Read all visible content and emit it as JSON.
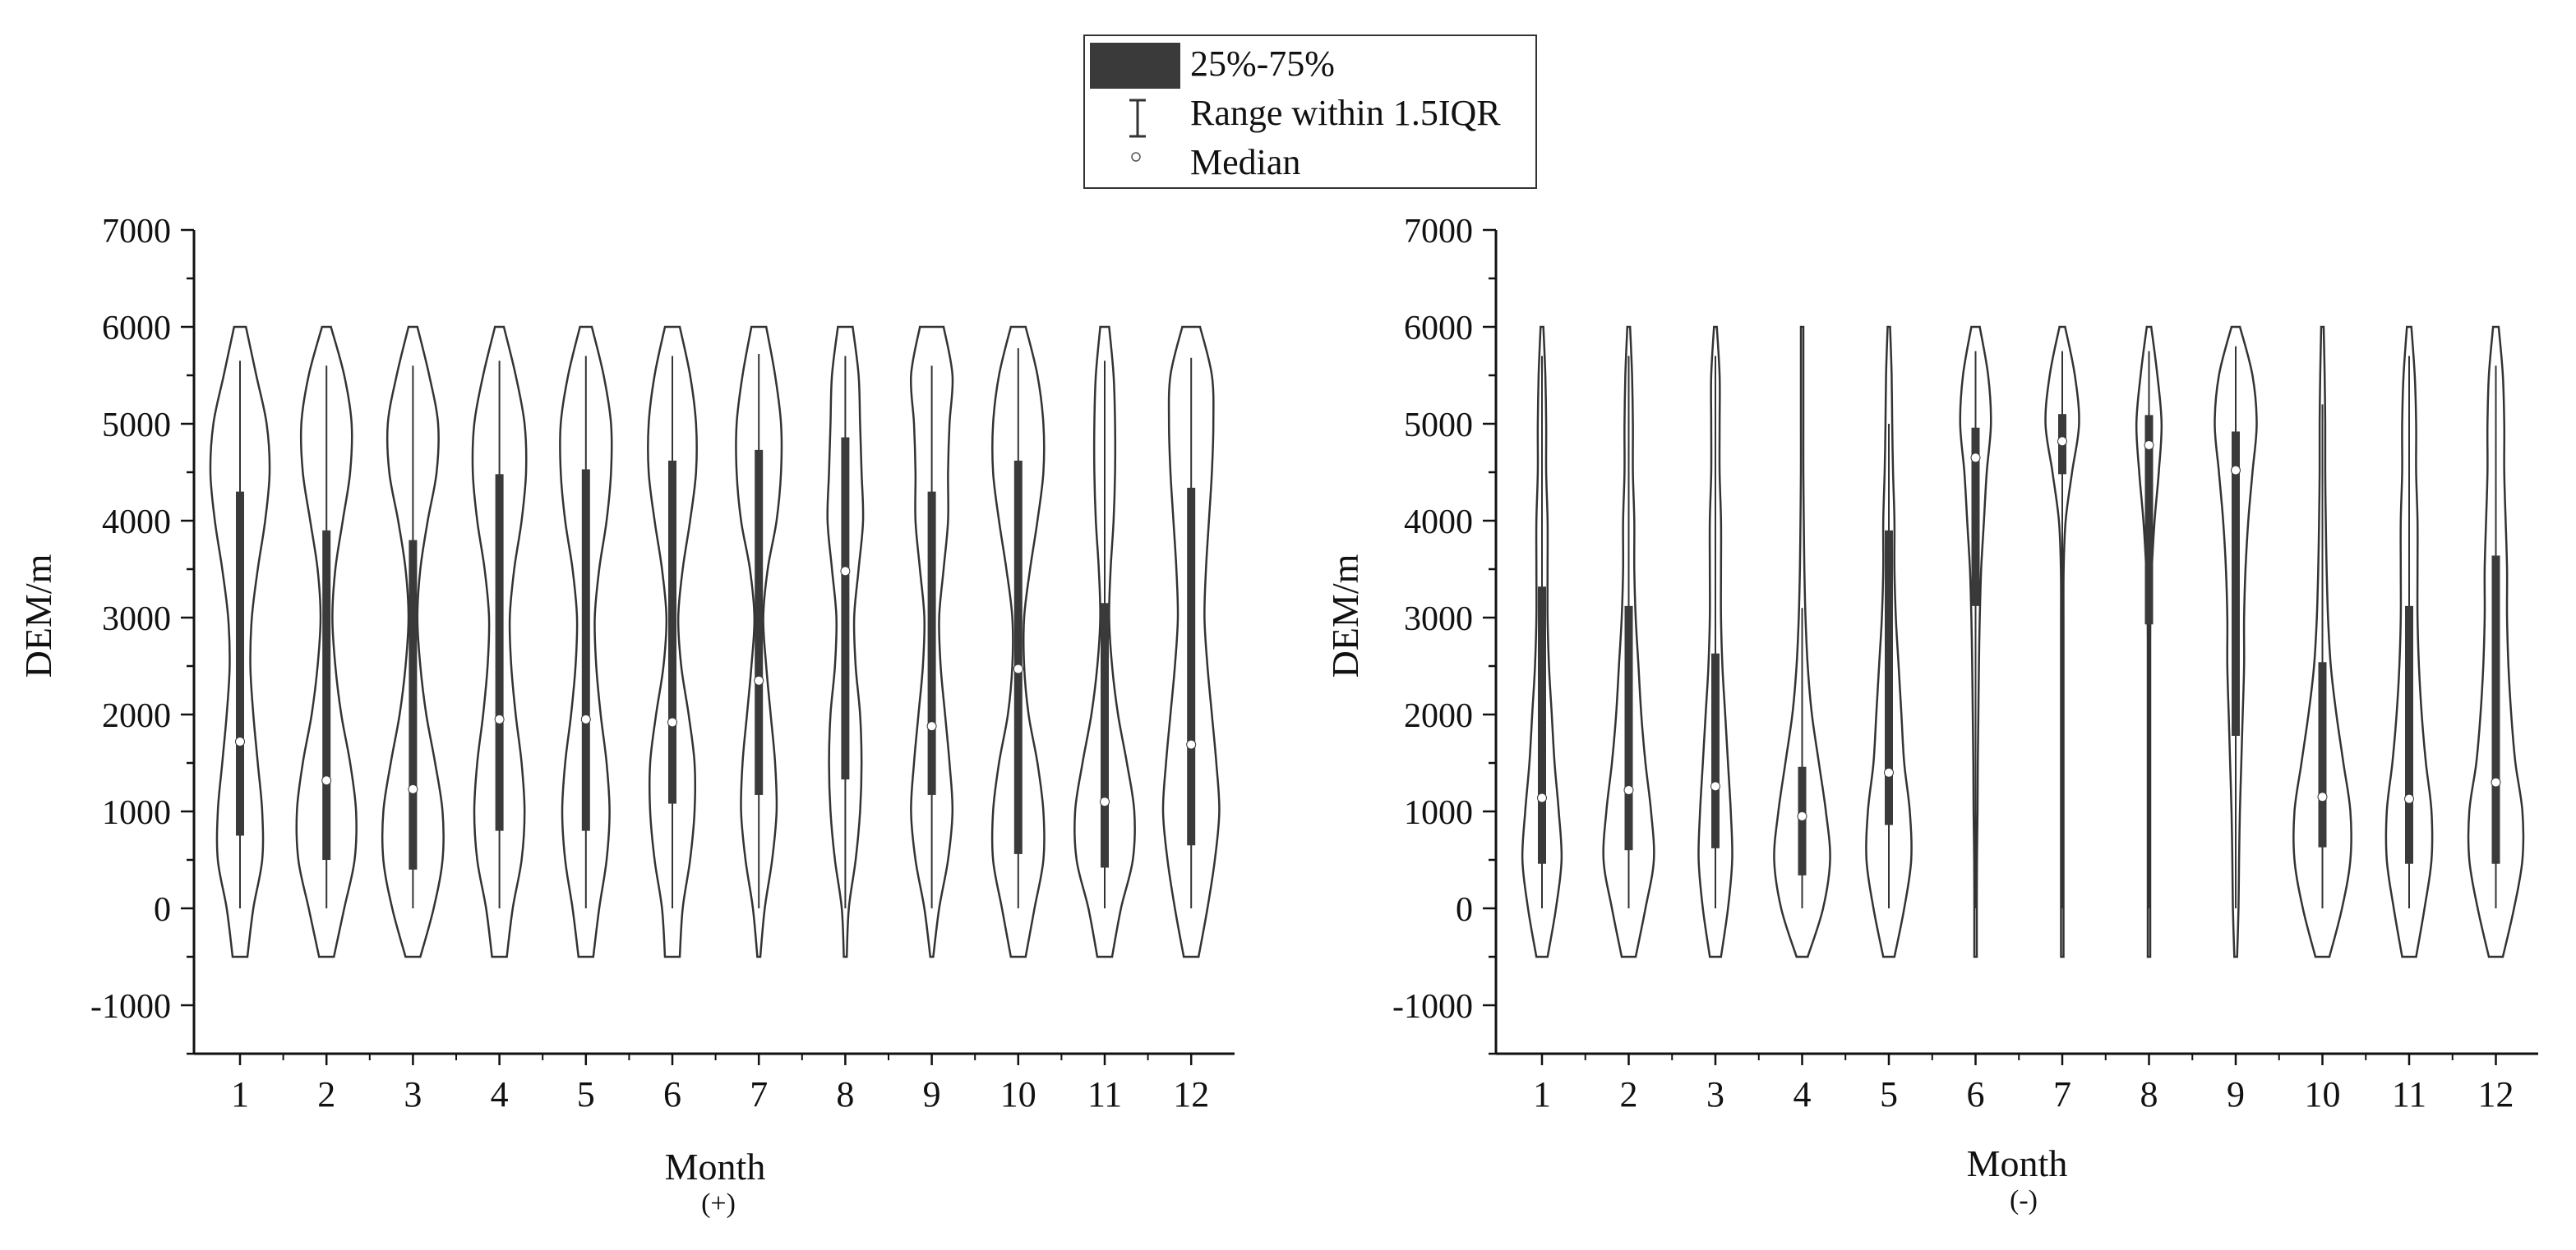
{
  "legend": {
    "box_label": "25%-75%",
    "whisker_label": "Range within 1.5IQR",
    "median_label": "Median"
  },
  "colors": {
    "violin_stroke": "#333333",
    "box_fill": "#3a3a3a",
    "median_fill": "#ffffff",
    "axis": "#111111"
  },
  "chart_data": [
    {
      "type": "violin",
      "id": "positive",
      "xlabel": "Month",
      "subtitle": "(+)",
      "ylabel": "DEM/m",
      "ylim": [
        -1500,
        7000
      ],
      "yticks": [
        -1000,
        0,
        1000,
        2000,
        3000,
        4000,
        5000,
        6000,
        7000
      ],
      "categories": [
        "1",
        "2",
        "3",
        "4",
        "5",
        "6",
        "7",
        "8",
        "9",
        "10",
        "11",
        "12"
      ],
      "density_levels": [
        -500,
        0,
        500,
        1000,
        1500,
        2000,
        2500,
        3000,
        3500,
        4000,
        4500,
        5000,
        5500,
        6000
      ],
      "series": [
        {
          "month": "1",
          "q1": 750,
          "median": 1720,
          "q3": 4300,
          "whisker_low": 0,
          "whisker_high": 5650,
          "density": [
            0.25,
            0.45,
            0.75,
            0.75,
            0.6,
            0.45,
            0.35,
            0.4,
            0.6,
            0.85,
            1.0,
            0.9,
            0.55,
            0.2
          ]
        },
        {
          "month": "2",
          "q1": 500,
          "median": 1320,
          "q3": 3900,
          "whisker_low": 0,
          "whisker_high": 5600,
          "density": [
            0.25,
            0.6,
            0.95,
            1.0,
            0.8,
            0.5,
            0.3,
            0.2,
            0.3,
            0.55,
            0.8,
            0.85,
            0.6,
            0.15
          ]
        },
        {
          "month": "3",
          "q1": 400,
          "median": 1230,
          "q3": 3800,
          "whisker_low": 0,
          "whisker_high": 5600,
          "density": [
            0.25,
            0.7,
            1.0,
            1.0,
            0.75,
            0.45,
            0.25,
            0.15,
            0.25,
            0.5,
            0.8,
            0.85,
            0.55,
            0.15
          ]
        },
        {
          "month": "4",
          "q1": 800,
          "median": 1950,
          "q3": 4480,
          "whisker_low": 0,
          "whisker_high": 5650,
          "density": [
            0.25,
            0.45,
            0.75,
            0.85,
            0.75,
            0.55,
            0.4,
            0.35,
            0.5,
            0.75,
            0.9,
            0.85,
            0.55,
            0.15
          ]
        },
        {
          "month": "5",
          "q1": 800,
          "median": 1950,
          "q3": 4530,
          "whisker_low": 0,
          "whisker_high": 5700,
          "density": [
            0.25,
            0.45,
            0.7,
            0.8,
            0.7,
            0.5,
            0.35,
            0.3,
            0.45,
            0.7,
            0.85,
            0.85,
            0.6,
            0.2
          ]
        },
        {
          "month": "6",
          "q1": 1080,
          "median": 1920,
          "q3": 4620,
          "whisker_low": 0,
          "whisker_high": 5700,
          "density": [
            0.25,
            0.35,
            0.6,
            0.75,
            0.75,
            0.55,
            0.3,
            0.2,
            0.35,
            0.6,
            0.8,
            0.8,
            0.6,
            0.25
          ]
        },
        {
          "month": "7",
          "q1": 1170,
          "median": 2350,
          "q3": 4730,
          "whisker_low": 0,
          "whisker_high": 5720,
          "density": [
            0.05,
            0.2,
            0.45,
            0.6,
            0.55,
            0.4,
            0.25,
            0.15,
            0.3,
            0.6,
            0.75,
            0.75,
            0.55,
            0.25
          ]
        },
        {
          "month": "8",
          "q1": 1330,
          "median": 3480,
          "q3": 4860,
          "whisker_low": 0,
          "whisker_high": 5700,
          "density": [
            0.05,
            0.12,
            0.35,
            0.5,
            0.55,
            0.5,
            0.35,
            0.3,
            0.45,
            0.6,
            0.55,
            0.5,
            0.45,
            0.25
          ]
        },
        {
          "month": "9",
          "q1": 1170,
          "median": 1880,
          "q3": 4300,
          "whisker_low": 0,
          "whisker_high": 5600,
          "density": [
            0.05,
            0.25,
            0.55,
            0.7,
            0.6,
            0.45,
            0.3,
            0.25,
            0.4,
            0.55,
            0.55,
            0.6,
            0.7,
            0.4
          ]
        },
        {
          "month": "10",
          "q1": 560,
          "median": 2470,
          "q3": 4620,
          "whisker_low": 0,
          "whisker_high": 5780,
          "density": [
            0.25,
            0.55,
            0.85,
            0.85,
            0.65,
            0.35,
            0.2,
            0.2,
            0.4,
            0.65,
            0.85,
            0.85,
            0.65,
            0.25
          ]
        },
        {
          "month": "11",
          "q1": 420,
          "median": 1100,
          "q3": 3150,
          "whisker_low": 0,
          "whisker_high": 5650,
          "density": [
            0.25,
            0.55,
            0.95,
            1.0,
            0.75,
            0.45,
            0.25,
            0.15,
            0.2,
            0.3,
            0.35,
            0.35,
            0.3,
            0.15
          ]
        },
        {
          "month": "12",
          "q1": 650,
          "median": 1690,
          "q3": 4340,
          "whisker_low": 0,
          "whisker_high": 5680,
          "density": [
            0.25,
            0.55,
            0.8,
            0.95,
            0.85,
            0.7,
            0.55,
            0.45,
            0.5,
            0.6,
            0.7,
            0.75,
            0.7,
            0.3
          ]
        }
      ]
    },
    {
      "type": "violin",
      "id": "negative",
      "xlabel": "Month",
      "subtitle": "(-)",
      "ylabel": "DEM/m",
      "ylim": [
        -1500,
        7000
      ],
      "yticks": [
        -1000,
        0,
        1000,
        2000,
        3000,
        4000,
        5000,
        6000,
        7000
      ],
      "categories": [
        "1",
        "2",
        "3",
        "4",
        "5",
        "6",
        "7",
        "8",
        "9",
        "10",
        "11",
        "12"
      ],
      "density_levels": [
        -500,
        0,
        500,
        1000,
        1500,
        2000,
        2500,
        3000,
        3500,
        4000,
        4500,
        5000,
        5500,
        6000
      ],
      "series": [
        {
          "month": "1",
          "q1": 460,
          "median": 1140,
          "q3": 3320,
          "whisker_low": 0,
          "whisker_high": 5700,
          "density": [
            0.2,
            0.5,
            0.7,
            0.6,
            0.45,
            0.35,
            0.25,
            0.2,
            0.2,
            0.2,
            0.15,
            0.15,
            0.12,
            0.05
          ]
        },
        {
          "month": "2",
          "q1": 600,
          "median": 1220,
          "q3": 3120,
          "whisker_low": 0,
          "whisker_high": 5700,
          "density": [
            0.25,
            0.6,
            0.9,
            0.8,
            0.6,
            0.45,
            0.35,
            0.25,
            0.2,
            0.2,
            0.15,
            0.15,
            0.12,
            0.05
          ]
        },
        {
          "month": "3",
          "q1": 620,
          "median": 1260,
          "q3": 2630,
          "whisker_low": 0,
          "whisker_high": 5700,
          "density": [
            0.2,
            0.45,
            0.6,
            0.55,
            0.45,
            0.35,
            0.25,
            0.2,
            0.2,
            0.2,
            0.15,
            0.15,
            0.15,
            0.05
          ]
        },
        {
          "month": "4",
          "q1": 340,
          "median": 950,
          "q3": 1460,
          "whisker_low": 0,
          "whisker_high": 3100,
          "density": [
            0.2,
            0.75,
            1.0,
            0.85,
            0.6,
            0.35,
            0.2,
            0.12,
            0.08,
            0.06,
            0.04,
            0.04,
            0.03,
            0.02
          ]
        },
        {
          "month": "5",
          "q1": 860,
          "median": 1400,
          "q3": 3900,
          "whisker_low": 0,
          "whisker_high": 5000,
          "density": [
            0.2,
            0.55,
            0.8,
            0.75,
            0.55,
            0.45,
            0.35,
            0.25,
            0.2,
            0.2,
            0.15,
            0.12,
            0.1,
            0.04
          ]
        },
        {
          "month": "6",
          "q1": 3120,
          "median": 4650,
          "q3": 4960,
          "whisker_low": 0,
          "whisker_high": 5750,
          "density": [
            0.01,
            0.03,
            0.05,
            0.07,
            0.08,
            0.1,
            0.12,
            0.15,
            0.2,
            0.3,
            0.4,
            0.55,
            0.45,
            0.15
          ]
        },
        {
          "month": "7",
          "q1": 4480,
          "median": 4820,
          "q3": 5100,
          "whisker_low": 0,
          "whisker_high": 5750,
          "density": [
            0.01,
            0.01,
            0.01,
            0.02,
            0.02,
            0.02,
            0.02,
            0.03,
            0.05,
            0.12,
            0.35,
            0.6,
            0.45,
            0.1
          ]
        },
        {
          "month": "8",
          "q1": 2930,
          "median": 4780,
          "q3": 5090,
          "whisker_low": 0,
          "whisker_high": 5750,
          "density": [
            0.01,
            0.01,
            0.01,
            0.02,
            0.02,
            0.02,
            0.03,
            0.05,
            0.1,
            0.2,
            0.35,
            0.45,
            0.3,
            0.08
          ]
        },
        {
          "month": "9",
          "q1": 1780,
          "median": 4520,
          "q3": 4920,
          "whisker_low": 0,
          "whisker_high": 5800,
          "density": [
            0.05,
            0.1,
            0.12,
            0.15,
            0.2,
            0.25,
            0.3,
            0.3,
            0.35,
            0.45,
            0.6,
            0.75,
            0.6,
            0.15
          ]
        },
        {
          "month": "10",
          "q1": 630,
          "median": 1150,
          "q3": 2540,
          "whisker_low": 0,
          "whisker_high": 5200,
          "density": [
            0.25,
            0.7,
            1.0,
            1.0,
            0.75,
            0.5,
            0.3,
            0.2,
            0.15,
            0.12,
            0.1,
            0.1,
            0.08,
            0.03
          ]
        },
        {
          "month": "11",
          "q1": 460,
          "median": 1130,
          "q3": 3120,
          "whisker_low": 0,
          "whisker_high": 5700,
          "density": [
            0.25,
            0.55,
            0.8,
            0.8,
            0.6,
            0.45,
            0.35,
            0.3,
            0.3,
            0.3,
            0.25,
            0.25,
            0.2,
            0.08
          ]
        },
        {
          "month": "12",
          "q1": 460,
          "median": 1300,
          "q3": 3640,
          "whisker_low": 0,
          "whisker_high": 5600,
          "density": [
            0.25,
            0.65,
            0.95,
            0.95,
            0.7,
            0.55,
            0.45,
            0.4,
            0.4,
            0.35,
            0.3,
            0.3,
            0.25,
            0.1
          ]
        }
      ]
    }
  ]
}
